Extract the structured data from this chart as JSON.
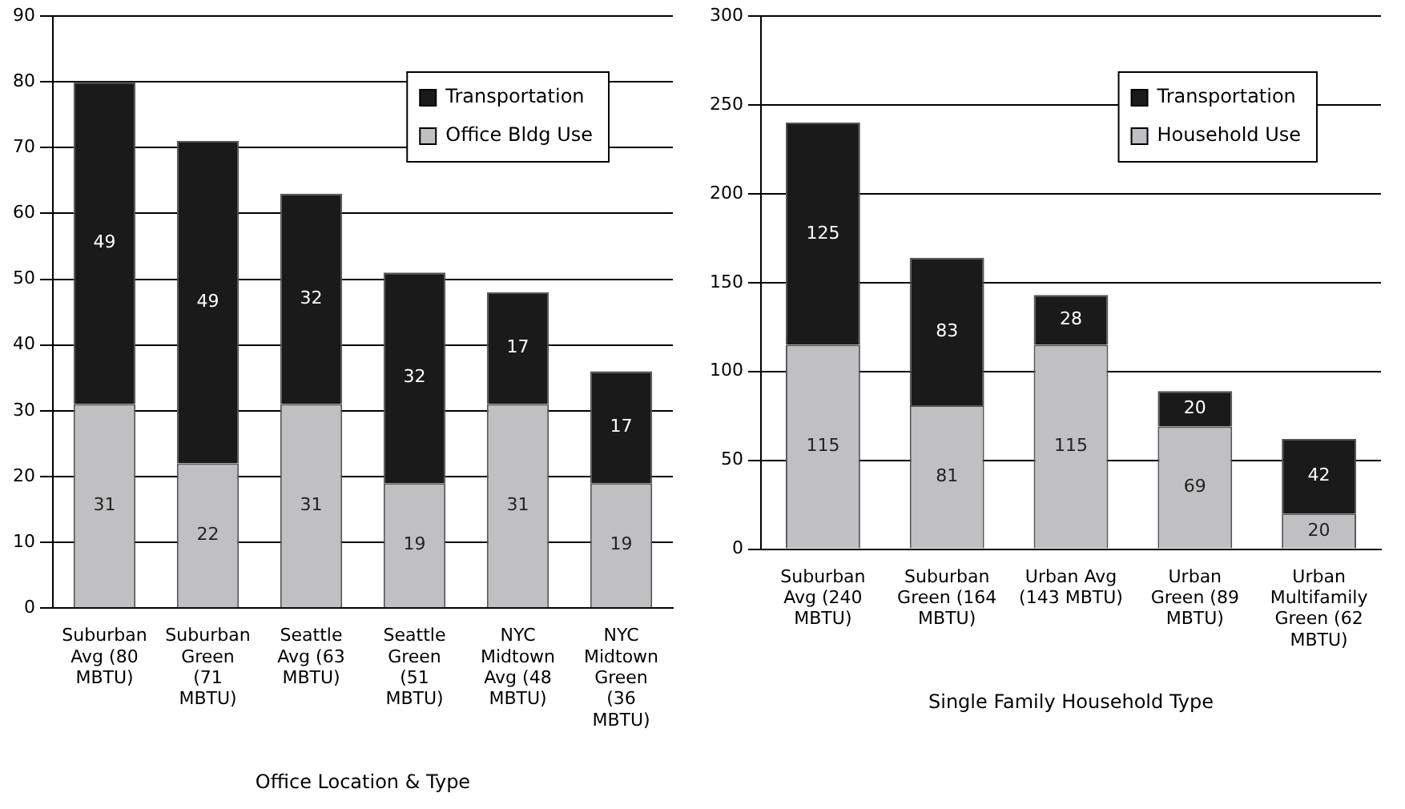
{
  "chart_data": [
    {
      "type": "bar",
      "stacked": true,
      "xlabel": "Office Location & Type",
      "categories": [
        "Suburban Avg (80 MBTU)",
        "Suburban Green (71 MBTU)",
        "Seattle Avg (63 MBTU)",
        "Seattle Green (51 MBTU)",
        "NYC Midtown Avg (48 MBTU)",
        "NYC Midtown Green (36 MBTU)"
      ],
      "series": [
        {
          "name": "Office Bldg Use",
          "color": "#c0c0c2",
          "values": [
            31,
            22,
            31,
            19,
            31,
            19
          ]
        },
        {
          "name": "Transportation",
          "color": "#1a1a1a",
          "values": [
            49,
            49,
            32,
            32,
            17,
            17
          ]
        }
      ],
      "ylim": [
        0,
        90
      ],
      "yticks": [
        0,
        10,
        20,
        30,
        40,
        50,
        60,
        70,
        80,
        90
      ],
      "grid": "y",
      "legend": "top right",
      "data_labels": true
    },
    {
      "type": "bar",
      "stacked": true,
      "xlabel": "Single Family Household Type",
      "categories": [
        "Suburban Avg (240 MBTU)",
        "Suburban Green (164 MBTU)",
        "Urban Avg (143 MBTU)",
        "Urban Green (89 MBTU)",
        "Urban Multifamily Green (62 MBTU)"
      ],
      "series": [
        {
          "name": "Household Use",
          "color": "#c0c0c2",
          "values": [
            115,
            81,
            115,
            69,
            20
          ]
        },
        {
          "name": "Transportation",
          "color": "#1a1a1a",
          "values": [
            125,
            83,
            28,
            20,
            42
          ]
        }
      ],
      "ylim": [
        0,
        300
      ],
      "yticks": [
        0,
        50,
        100,
        150,
        200,
        250,
        300
      ],
      "grid": "y",
      "legend": "top right",
      "data_labels": true
    }
  ]
}
